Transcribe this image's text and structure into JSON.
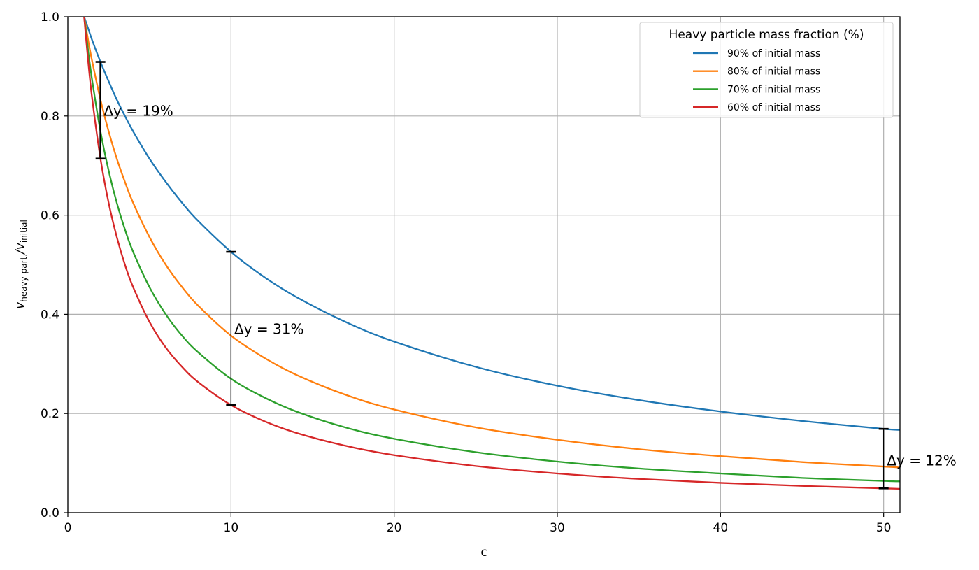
{
  "chart_data": {
    "type": "line",
    "title": "",
    "xlabel": "c",
    "ylabel_main": "v",
    "ylabel_sub1": "heavy part.",
    "ylabel_sep": "/v",
    "ylabel_sub2": "initial",
    "xlim": [
      0,
      51
    ],
    "ylim": [
      0,
      1
    ],
    "xticks": [
      0,
      10,
      20,
      30,
      40,
      50
    ],
    "xtick_labels": [
      "0",
      "10",
      "20",
      "30",
      "40",
      "50"
    ],
    "yticks": [
      0,
      0.2,
      0.4,
      0.6,
      0.8,
      1.0
    ],
    "ytick_labels": [
      "0.0",
      "0.2",
      "0.4",
      "0.6",
      "0.8",
      "1.0"
    ],
    "grid": true,
    "legend": {
      "title": "Heavy particle mass fraction (%)",
      "placement": "top-right"
    },
    "x": [
      1,
      1.25,
      1.5,
      2,
      2.5,
      3,
      3.5,
      4,
      5,
      6,
      7,
      8,
      10,
      12,
      14,
      17,
      20,
      25,
      30,
      35,
      40,
      45,
      50,
      51
    ],
    "series": [
      {
        "name": "90% of initial mass",
        "color": "#1f77b4",
        "values": [
          1,
          0.976,
          0.952,
          0.909,
          0.87,
          0.833,
          0.8,
          0.769,
          0.714,
          0.667,
          0.625,
          0.588,
          0.526,
          0.476,
          0.435,
          0.385,
          0.345,
          0.294,
          0.256,
          0.227,
          0.204,
          0.185,
          0.169,
          0.167
        ]
      },
      {
        "name": "80% of initial mass",
        "color": "#ff7f0e",
        "values": [
          1,
          0.952,
          0.909,
          0.833,
          0.769,
          0.714,
          0.667,
          0.625,
          0.556,
          0.5,
          0.455,
          0.417,
          0.357,
          0.313,
          0.278,
          0.238,
          0.208,
          0.172,
          0.147,
          0.128,
          0.114,
          0.102,
          0.093,
          0.091
        ]
      },
      {
        "name": "70% of initial mass",
        "color": "#2ca02c",
        "values": [
          1,
          0.93,
          0.87,
          0.769,
          0.69,
          0.625,
          0.571,
          0.526,
          0.455,
          0.4,
          0.357,
          0.323,
          0.27,
          0.233,
          0.204,
          0.172,
          0.149,
          0.122,
          0.103,
          0.089,
          0.079,
          0.07,
          0.064,
          0.063
        ]
      },
      {
        "name": "60% of initial mass",
        "color": "#d62728",
        "values": [
          1,
          0.909,
          0.833,
          0.714,
          0.625,
          0.556,
          0.5,
          0.455,
          0.385,
          0.333,
          0.294,
          0.263,
          0.217,
          0.185,
          0.161,
          0.135,
          0.116,
          0.094,
          0.079,
          0.068,
          0.06,
          0.054,
          0.049,
          0.048
        ]
      }
    ],
    "annotations": [
      {
        "x": 2,
        "y_low": 0.714,
        "y_high": 0.909,
        "label": "Δy = 19%",
        "label_x": 2.2,
        "label_y": 0.81,
        "bold": true
      },
      {
        "x": 10,
        "y_low": 0.217,
        "y_high": 0.526,
        "label": "Δy = 31%",
        "label_x": 10.2,
        "label_y": 0.37,
        "bold": false
      },
      {
        "x": 50,
        "y_low": 0.049,
        "y_high": 0.169,
        "label": "Δy = 12%",
        "label_x": 50.2,
        "label_y": 0.105,
        "bold": false
      }
    ]
  }
}
